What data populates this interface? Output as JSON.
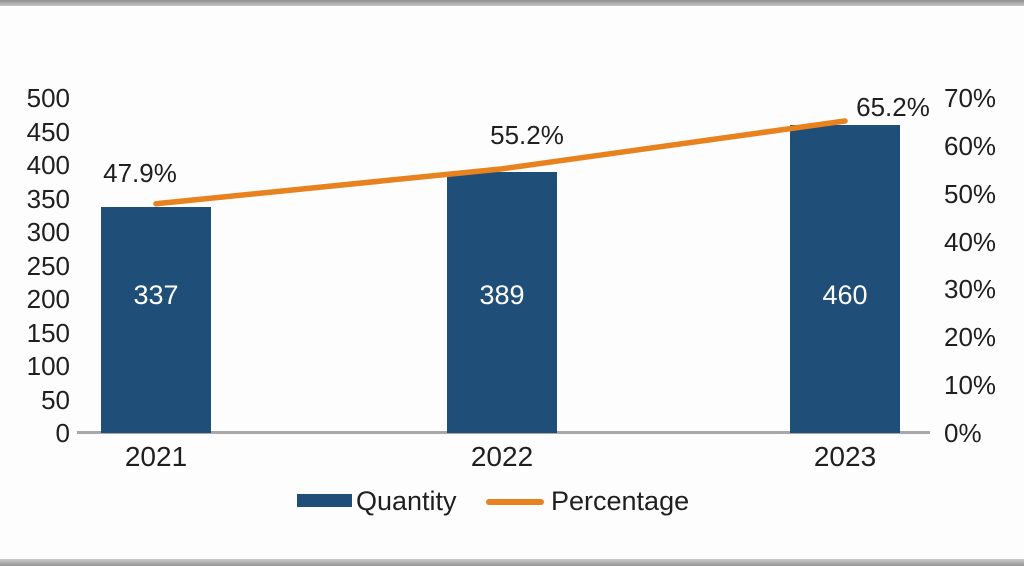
{
  "chart_data": {
    "type": "bar",
    "subtype": "combo-bar-line",
    "title": "",
    "categories": [
      "2021",
      "2022",
      "2023"
    ],
    "series": [
      {
        "name": "Quantity",
        "chart_type": "bar",
        "axis": "left",
        "values": [
          337,
          389,
          460
        ],
        "data_labels": [
          "337",
          "389",
          "460"
        ],
        "color": "#1F4E79",
        "label_color": "#FFFFFF"
      },
      {
        "name": "Percentage",
        "chart_type": "line",
        "axis": "right",
        "values": [
          47.9,
          55.2,
          65.2
        ],
        "data_labels": [
          "47.9%",
          "55.2%",
          "65.2%"
        ],
        "color": "#E8821E",
        "label_color": "#1F1F1F"
      }
    ],
    "left_axis": {
      "min": 0,
      "max": 500,
      "step": 50,
      "tick_labels": [
        "0",
        "50",
        "100",
        "150",
        "200",
        "250",
        "300",
        "350",
        "400",
        "450",
        "500"
      ]
    },
    "right_axis": {
      "min": 0,
      "max": 70,
      "step": 10,
      "tick_labels": [
        "0%",
        "10%",
        "20%",
        "30%",
        "40%",
        "50%",
        "60%",
        "70%"
      ]
    },
    "grid": false,
    "legend": {
      "position": "bottom",
      "entries": [
        {
          "label": "Quantity",
          "marker": "bar"
        },
        {
          "label": "Percentage",
          "marker": "line"
        }
      ]
    }
  },
  "frame": {
    "top_rule_color": "#8e8e8e",
    "bottom_rule_color": "#939393",
    "axis_line_color": "#a8a8a8",
    "background": "#fdfdfd",
    "text_color": "#1f1f1f"
  }
}
